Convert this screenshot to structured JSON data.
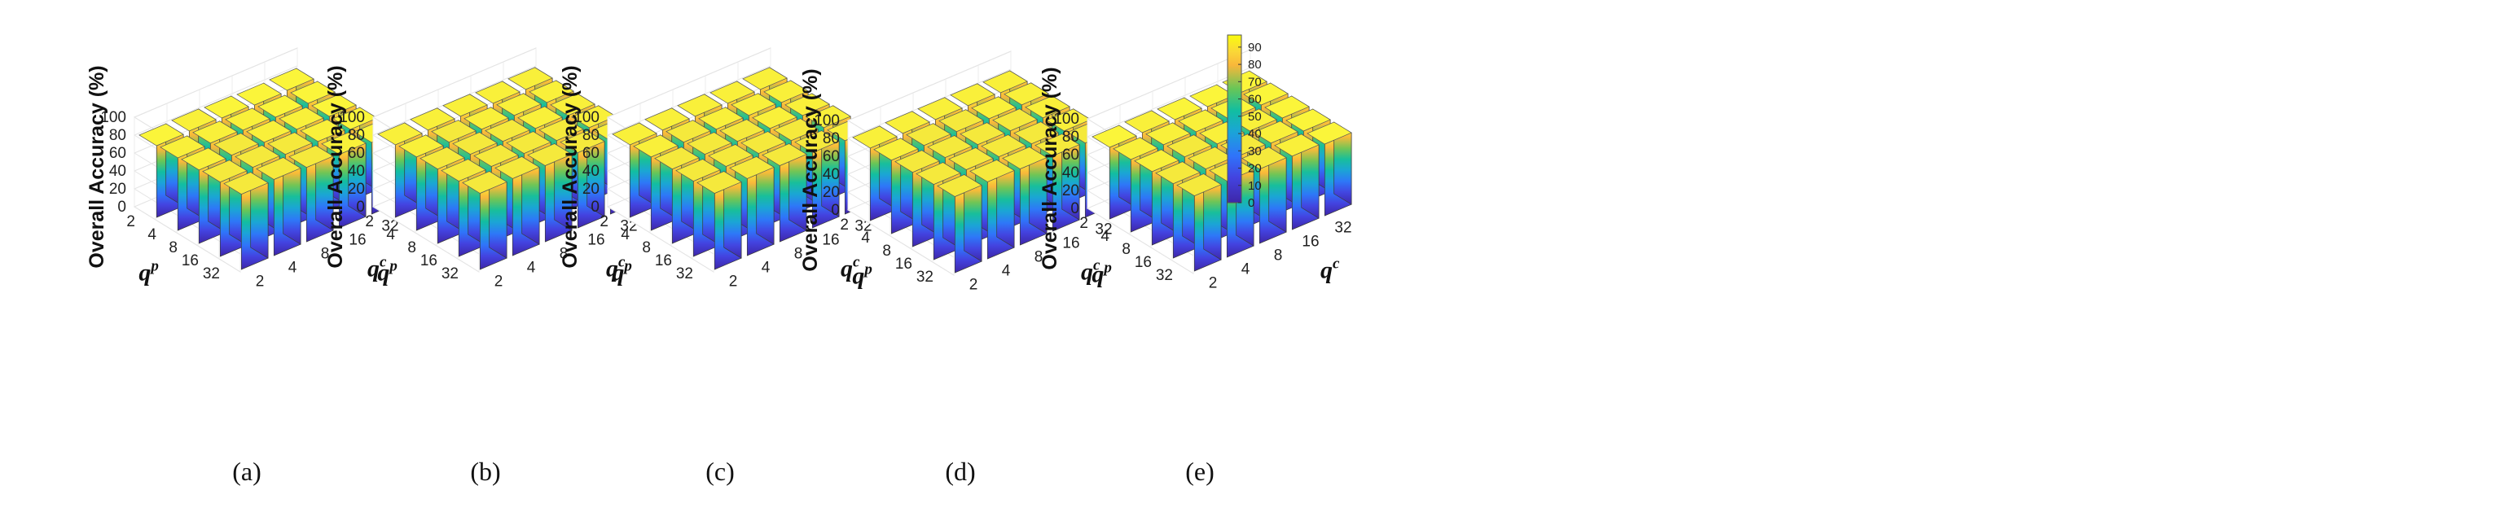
{
  "figure": {
    "zlabel": "Overall Accuracy (%)",
    "xname": "q",
    "xsup": "p",
    "yname": "q",
    "ysup": "c",
    "x_ticks": [
      "2",
      "4",
      "8",
      "16",
      "32"
    ],
    "y_ticks": [
      "2",
      "4",
      "8",
      "16",
      "32"
    ],
    "z_ticks": [
      "0",
      "20",
      "40",
      "60",
      "80",
      "100"
    ],
    "colorbar_ticks": [
      "0",
      "10",
      "20",
      "30",
      "40",
      "50",
      "60",
      "70",
      "80",
      "90"
    ]
  },
  "chart_data": [
    {
      "type": "bar3d",
      "caption": "(a)",
      "title": "",
      "xlabel": "q^p",
      "ylabel": "q^c",
      "zlabel": "Overall Accuracy (%)",
      "x": [
        "2",
        "4",
        "8",
        "16",
        "32"
      ],
      "y": [
        "2",
        "4",
        "8",
        "16",
        "32"
      ],
      "zlim": [
        0,
        100
      ],
      "values": [
        [
          80,
          81,
          80,
          79,
          80
        ],
        [
          81,
          82,
          81,
          80,
          80
        ],
        [
          82,
          83,
          82,
          81,
          80
        ],
        [
          83,
          84,
          83,
          82,
          80
        ],
        [
          84,
          85,
          83,
          82,
          80
        ]
      ]
    },
    {
      "type": "bar3d",
      "caption": "(b)",
      "title": "",
      "xlabel": "q^p",
      "ylabel": "q^c",
      "zlabel": "Overall Accuracy (%)",
      "x": [
        "2",
        "4",
        "8",
        "16",
        "32"
      ],
      "y": [
        "2",
        "4",
        "8",
        "16",
        "32"
      ],
      "zlim": [
        0,
        100
      ],
      "values": [
        [
          81,
          82,
          82,
          81,
          81
        ],
        [
          82,
          83,
          82,
          82,
          81
        ],
        [
          83,
          84,
          83,
          82,
          81
        ],
        [
          84,
          85,
          84,
          83,
          82
        ],
        [
          85,
          86,
          85,
          84,
          82
        ]
      ]
    },
    {
      "type": "bar3d",
      "caption": "(c)",
      "title": "",
      "xlabel": "q^p",
      "ylabel": "q^c",
      "zlabel": "Overall Accuracy (%)",
      "x": [
        "2",
        "4",
        "8",
        "16",
        "32"
      ],
      "y": [
        "2",
        "4",
        "8",
        "16",
        "32"
      ],
      "zlim": [
        0,
        100
      ],
      "values": [
        [
          81,
          82,
          82,
          81,
          81
        ],
        [
          82,
          83,
          82,
          82,
          81
        ],
        [
          83,
          84,
          83,
          82,
          81
        ],
        [
          84,
          85,
          84,
          83,
          82
        ],
        [
          85,
          86,
          85,
          84,
          82
        ]
      ]
    },
    {
      "type": "bar3d",
      "caption": "(d)",
      "title": "",
      "xlabel": "q^p",
      "ylabel": "q^c",
      "zlabel": "Overall Accuracy (%)",
      "x": [
        "2",
        "4",
        "8",
        "16",
        "32"
      ],
      "y": [
        "2",
        "4",
        "8",
        "16",
        "32"
      ],
      "zlim": [
        0,
        100
      ],
      "values": [
        [
          81,
          82,
          82,
          82,
          81
        ],
        [
          82,
          83,
          83,
          82,
          82
        ],
        [
          83,
          84,
          83,
          83,
          82
        ],
        [
          84,
          85,
          84,
          83,
          82
        ],
        [
          85,
          86,
          85,
          84,
          83
        ]
      ]
    },
    {
      "type": "bar3d",
      "caption": "(e)",
      "title": "",
      "xlabel": "q^p",
      "ylabel": "q^c",
      "zlabel": "Overall Accuracy (%)",
      "x": [
        "2",
        "4",
        "8",
        "16",
        "32"
      ],
      "y": [
        "2",
        "4",
        "8",
        "16",
        "32"
      ],
      "zlim": [
        0,
        100
      ],
      "values": [
        [
          80,
          81,
          80,
          79,
          79
        ],
        [
          81,
          82,
          81,
          80,
          80
        ],
        [
          82,
          83,
          82,
          81,
          80
        ],
        [
          83,
          84,
          83,
          82,
          80
        ],
        [
          84,
          85,
          83,
          82,
          80
        ]
      ]
    }
  ],
  "colorbar": {
    "min": 0,
    "max": 97,
    "ticks": [
      "0",
      "10",
      "20",
      "30",
      "40",
      "50",
      "60",
      "70",
      "80",
      "90"
    ]
  }
}
